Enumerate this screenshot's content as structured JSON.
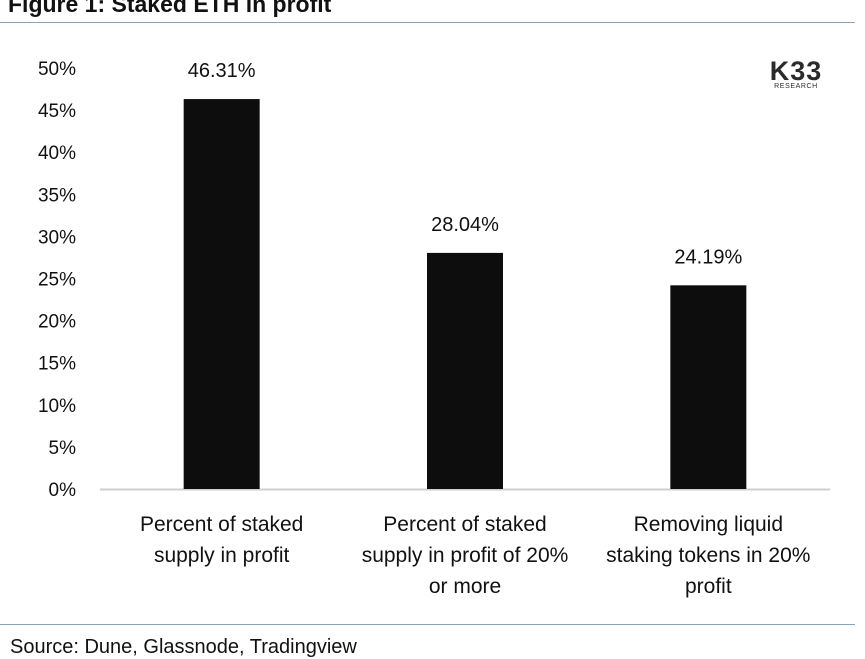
{
  "figure": {
    "title": "Figure 1: Staked ETH in profit",
    "source": "Source: Dune, Glassnode, Tradingview"
  },
  "logo": {
    "main": "K33",
    "sub": "RESEARCH"
  },
  "colors": {
    "bar": "#0d0d0d",
    "axis": "#cfcfcf",
    "rule": "#8ea2b8"
  },
  "chart_data": {
    "type": "bar",
    "title": "Staked ETH in profit",
    "categories": [
      [
        "Percent of staked",
        "supply in profit"
      ],
      [
        "Percent of staked",
        "supply in profit of 20%",
        "or more"
      ],
      [
        "Removing liquid",
        "staking tokens in 20%",
        "profit"
      ]
    ],
    "values": [
      46.31,
      28.04,
      24.19
    ],
    "value_labels": [
      "46.31%",
      "28.04%",
      "24.19%"
    ],
    "ylim": [
      0,
      50
    ],
    "yticks": [
      0,
      5,
      10,
      15,
      20,
      25,
      30,
      35,
      40,
      45,
      50
    ],
    "ytick_labels": [
      "0%",
      "5%",
      "10%",
      "15%",
      "20%",
      "25%",
      "30%",
      "35%",
      "40%",
      "45%",
      "50%"
    ],
    "xlabel": "",
    "ylabel": "",
    "grid": false,
    "legend": "none"
  }
}
